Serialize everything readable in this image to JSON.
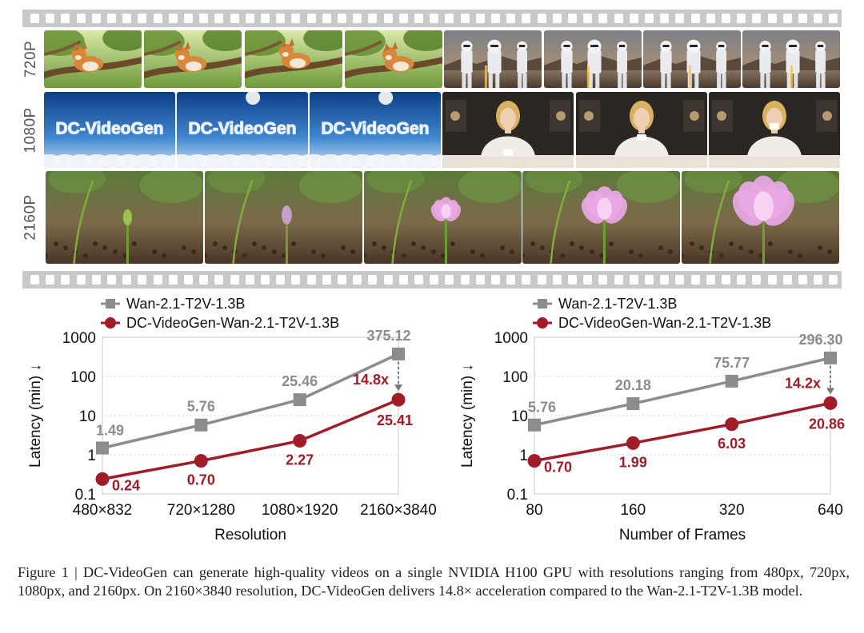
{
  "rows": [
    {
      "label": "720P"
    },
    {
      "label": "1080P"
    },
    {
      "label": "2160P"
    }
  ],
  "frame_scenes": {
    "row_720p": [
      "corgi-on-tree-branch",
      "corgi-on-tree-branch",
      "corgi-on-tree-branch",
      "corgi-on-tree-branch",
      "stormtroopers-in-desert",
      "stormtroopers-in-desert",
      "stormtroopers-in-desert",
      "stormtroopers-in-desert"
    ],
    "row_1080p": [
      "DC-VideoGen cloud text sky",
      "DC-VideoGen cloud text sky",
      "DC-VideoGen cloud text sky",
      "woman-with-coffee-cup",
      "woman-with-coffee-cup",
      "woman-with-coffee-cup"
    ],
    "row_2160p": [
      "lotus-bud-blooming",
      "lotus-bud-blooming",
      "lotus-bud-blooming",
      "lotus-bud-blooming",
      "lotus-bud-blooming"
    ]
  },
  "cloud_text": "DC-VideoGen",
  "colors": {
    "wan": "#8c8c8c",
    "dc": "#a01c28",
    "film": "#c9c9c9",
    "sky": "#1f5fae"
  },
  "chart_data": [
    {
      "type": "line",
      "y_scale": "log",
      "ylabel": "Latency (min) ↓",
      "xlabel": "Resolution",
      "categories": [
        "480×832",
        "720×1280",
        "1080×1920",
        "2160×3840"
      ],
      "yticks": [
        "0.1",
        "1",
        "10",
        "100",
        "1000"
      ],
      "ylim": [
        0.1,
        1000
      ],
      "legend": "top-left",
      "series": [
        {
          "name": "Wan-2.1-T2V-1.3B",
          "values": [
            1.49,
            5.76,
            25.46,
            375.12
          ],
          "labels": [
            "1.49",
            "5.76",
            "25.46",
            "375.12"
          ],
          "marker": "square"
        },
        {
          "name": "DC-VideoGen-Wan-2.1-T2V-1.3B",
          "values": [
            0.24,
            0.7,
            2.27,
            25.41
          ],
          "labels": [
            "0.24",
            "0.70",
            "2.27",
            "25.41"
          ],
          "marker": "circle"
        }
      ],
      "annotation": "14.8x"
    },
    {
      "type": "line",
      "y_scale": "log",
      "ylabel": "Latency (min) ↓",
      "xlabel": "Number of Frames",
      "categories": [
        "80",
        "160",
        "320",
        "640"
      ],
      "yticks": [
        "0.1",
        "1",
        "10",
        "100",
        "1000"
      ],
      "ylim": [
        0.1,
        1000
      ],
      "legend": "top-left",
      "series": [
        {
          "name": "Wan-2.1-T2V-1.3B",
          "values": [
            5.76,
            20.18,
            75.77,
            296.3
          ],
          "labels": [
            "5.76",
            "20.18",
            "75.77",
            "296.30"
          ],
          "marker": "square"
        },
        {
          "name": "DC-VideoGen-Wan-2.1-T2V-1.3B",
          "values": [
            0.7,
            1.99,
            6.03,
            20.86
          ],
          "labels": [
            "0.70",
            "1.99",
            "6.03",
            "20.86"
          ],
          "marker": "circle"
        }
      ],
      "annotation": "14.2x"
    }
  ],
  "caption": "Figure 1 | DC-VideoGen can generate high-quality videos on a single NVIDIA H100 GPU with resolutions ranging from 480px, 720px, 1080px, and 2160px. On 2160×3840 resolution, DC-VideoGen delivers 14.8× acceleration compared to the Wan-2.1-T2V-1.3B model."
}
